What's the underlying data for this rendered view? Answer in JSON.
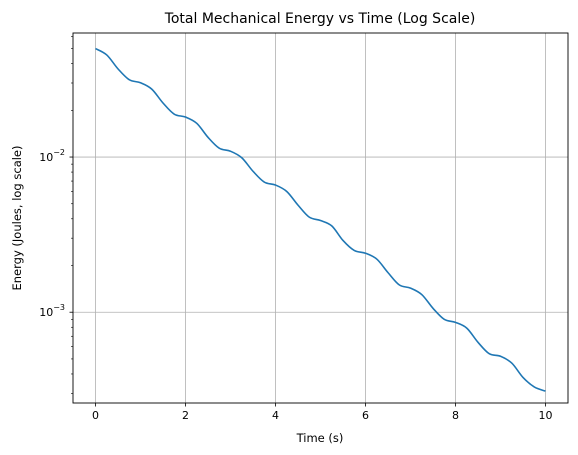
{
  "chart_data": {
    "type": "line",
    "title": "Total Mechanical Energy vs Time (Log Scale)",
    "xlabel": "Time (s)",
    "ylabel": "Energy (Joules, log scale)",
    "xlim": [
      -0.5,
      10.5
    ],
    "ylim": [
      0.00026,
      0.063
    ],
    "yscale": "log",
    "grid": true,
    "x_ticks": [
      0,
      2,
      4,
      6,
      8,
      10
    ],
    "y_ticks": [
      {
        "value": 0.01,
        "base": "10",
        "exp": "−2"
      },
      {
        "value": 0.001,
        "base": "10",
        "exp": "−3"
      }
    ],
    "series": [
      {
        "color": "#1f77b4",
        "x": [
          0,
          0.25,
          0.5,
          0.75,
          1,
          1.25,
          1.5,
          1.75,
          2,
          2.25,
          2.5,
          2.75,
          3,
          3.25,
          3.5,
          3.75,
          4,
          4.25,
          4.5,
          4.75,
          5,
          5.25,
          5.5,
          5.75,
          6,
          6.25,
          6.5,
          6.75,
          7,
          7.25,
          7.5,
          7.75,
          8,
          8.25,
          8.5,
          8.75,
          9,
          9.25,
          9.5,
          9.75,
          10
        ],
        "y": [
          0.05,
          0.0455,
          0.037,
          0.0315,
          0.0301,
          0.0274,
          0.0223,
          0.0189,
          0.0181,
          0.0165,
          0.0134,
          0.0114,
          0.0109,
          0.0099,
          0.0081,
          0.0069,
          0.0066,
          0.006,
          0.0049,
          0.0041,
          0.0039,
          0.0036,
          0.0029,
          0.0025,
          0.0024,
          0.0022,
          0.0018,
          0.0015,
          0.00143,
          0.0013,
          0.00106,
          0.0009,
          0.00086,
          0.00079,
          0.00064,
          0.00054,
          0.00052,
          0.00047,
          0.00038,
          0.00033,
          0.00031
        ]
      }
    ]
  }
}
